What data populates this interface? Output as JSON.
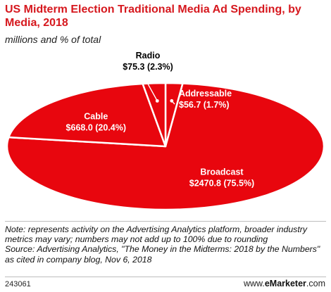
{
  "header": {
    "title": "US Midterm Election Traditional Media Ad Spending, by Media, 2018",
    "subtitle": "millions and % of total"
  },
  "chart_data": {
    "type": "pie",
    "title": "US Midterm Election Traditional Media Ad Spending, by Media, 2018",
    "subtitle": "millions and % of total",
    "slices": [
      {
        "name": "Broadcast",
        "value": 2470.8,
        "percent": 75.5,
        "value_label": "$2470.8 (75.5%)"
      },
      {
        "name": "Cable",
        "value": 668.0,
        "percent": 20.4,
        "value_label": "$668.0 (20.4%)"
      },
      {
        "name": "Radio",
        "value": 75.3,
        "percent": 2.3,
        "value_label": "$75.3 (2.3%)"
      },
      {
        "name": "Addressable",
        "value": 56.7,
        "percent": 1.7,
        "value_label": "$56.7 (1.7%)"
      }
    ],
    "colors": {
      "fill": "#e8060e",
      "stroke": "#ffffff",
      "label_text": "#ffffff",
      "outside_label_text": "#000000"
    }
  },
  "notes": {
    "note": "Note: represents activity on the Advertising Analytics platform, broader industry metrics may vary; numbers may not add up to 100% due to rounding",
    "source": "Source: Advertising Analytics, \"The Money in the Midterms: 2018 by the Numbers\" as cited in company blog, Nov 6, 2018"
  },
  "footer": {
    "chart_id": "243061",
    "brand_prefix": "www.",
    "brand_name": "eMarketer",
    "brand_suffix": ".com"
  }
}
